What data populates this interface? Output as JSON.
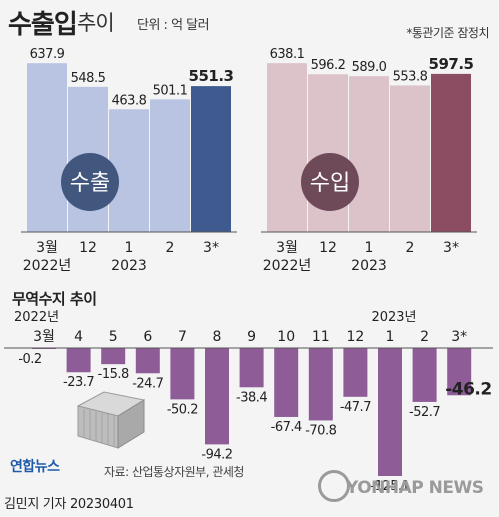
{
  "header": {
    "title_main": "수출입",
    "title_sub": "추이",
    "unit": "단위 : 억 달러",
    "basis_note": "*통관기준 잠정치"
  },
  "colors": {
    "export_bar": "#b9c3e2",
    "export_bar_latest": "#3e5a8f",
    "export_badge": "#41577e",
    "import_bar": "#dcc3c9",
    "import_bar_latest": "#8c4d63",
    "import_badge": "#6e4a59",
    "balance_bar": "#8e5d98"
  },
  "chart_data": [
    {
      "type": "bar",
      "badge": "수출",
      "categories": [
        "3월",
        "12",
        "1",
        "2",
        "3*"
      ],
      "year_labels": [
        "2022년",
        "2023"
      ],
      "values": [
        637.9,
        548.5,
        463.8,
        501.1,
        551.3
      ],
      "value_labels": [
        "637.9",
        "548.5",
        "463.8",
        "501.1",
        "551.3"
      ],
      "highlight_last": true,
      "ylim": [
        0,
        650
      ]
    },
    {
      "type": "bar",
      "badge": "수입",
      "categories": [
        "3월",
        "12",
        "1",
        "2",
        "3*"
      ],
      "year_labels": [
        "2022년",
        "2023"
      ],
      "values": [
        638.1,
        596.2,
        589.0,
        553.8,
        597.5
      ],
      "value_labels": [
        "638.1",
        "596.2",
        "589.0",
        "553.8",
        "597.5"
      ],
      "highlight_last": true,
      "ylim": [
        0,
        650
      ]
    },
    {
      "type": "bar",
      "title": "무역수지 추이",
      "year_labels": [
        "2022년",
        "2023년"
      ],
      "categories": [
        "3월",
        "4",
        "5",
        "6",
        "7",
        "8",
        "9",
        "10",
        "11",
        "12",
        "1",
        "2",
        "3*"
      ],
      "values": [
        -0.2,
        -23.7,
        -15.8,
        -24.7,
        -50.2,
        -94.2,
        -38.4,
        -67.4,
        -70.8,
        -47.7,
        -125.1,
        -52.7,
        -46.2
      ],
      "value_labels": [
        "-0.2",
        "-23.7",
        "-15.8",
        "-24.7",
        "-50.2",
        "-94.2",
        "-38.4",
        "-67.4",
        "-70.8",
        "-47.7",
        "-125.1",
        "-52.7",
        "-46.2"
      ],
      "ylim": [
        -130,
        0
      ]
    }
  ],
  "footer": {
    "source": "자료: 산업통상자원부, 관세청",
    "logo": "연합뉴스",
    "watermark": "YONHAP NEWS",
    "byline": "김민지 기자  20230401"
  }
}
